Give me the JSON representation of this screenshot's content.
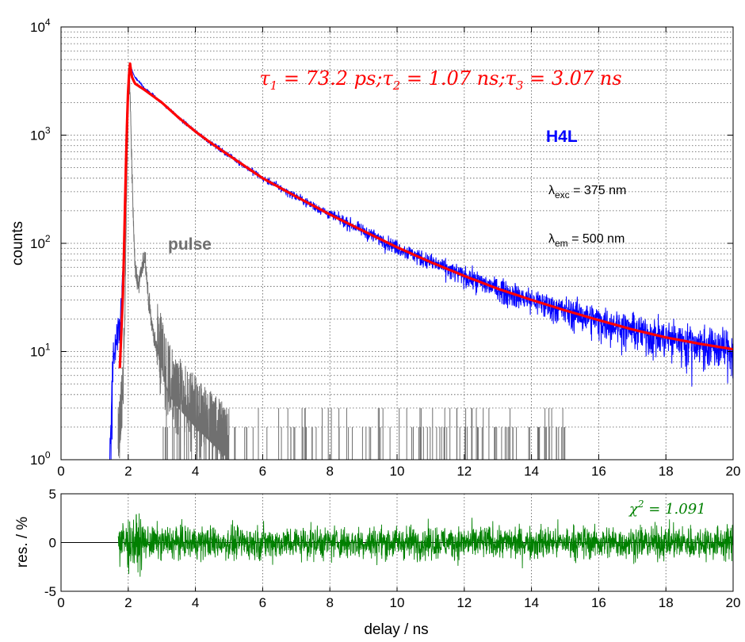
{
  "chart_data": [
    {
      "type": "line",
      "ylabel": "counts",
      "y_scale": "log",
      "xlim": [
        0,
        20
      ],
      "ylim": [
        1,
        10000
      ],
      "x_ticks": [
        "0",
        "2",
        "4",
        "6",
        "8",
        "10",
        "12",
        "14",
        "16",
        "18",
        "20"
      ],
      "y_ticks": [
        {
          "base": "10",
          "exp": "0"
        },
        {
          "base": "10",
          "exp": "1"
        },
        {
          "base": "10",
          "exp": "2"
        },
        {
          "base": "10",
          "exp": "3"
        },
        {
          "base": "10",
          "exp": "4"
        }
      ],
      "grid": true,
      "annotations": {
        "fit": "τ1 = 73.2 ps; τ2 = 1.07 ns; τ3 = 3.07 ns",
        "fit_parts": [
          {
            "sym": "τ",
            "sub": "1",
            "rest": " = 73.2 ps;"
          },
          {
            "sym": "τ",
            "sub": "2",
            "rest": " = 1.07 ns;"
          },
          {
            "sym": "τ",
            "sub": "3",
            "rest": " = 3.07 ns"
          }
        ],
        "sample": "H4L",
        "pulse": "pulse",
        "excitation": {
          "sym": "λ",
          "sub": "exc",
          "rest": " = 375 nm"
        },
        "emission": {
          "sym": "λ",
          "sub": "em",
          "rest": " = 500 nm"
        }
      },
      "series": [
        {
          "role": "measured decay",
          "color": "#0000ff",
          "x": [
            1.45,
            1.55,
            1.65,
            1.75,
            1.85,
            1.95,
            2.05,
            2.2,
            2.5,
            3,
            3.5,
            4,
            4.5,
            5,
            6,
            7,
            8,
            9,
            10,
            11,
            12,
            13,
            14,
            15,
            16,
            17,
            18,
            19,
            20
          ],
          "y": [
            1,
            8,
            12,
            16,
            60,
            1500,
            4500,
            3400,
            2700,
            2000,
            1450,
            1080,
            830,
            650,
            400,
            270,
            185,
            130,
            92,
            67,
            50,
            38,
            30,
            24,
            19.5,
            16,
            13.5,
            11.8,
            10.5
          ]
        },
        {
          "role": "fit",
          "color": "#ff0000",
          "x": [
            1.75,
            1.85,
            1.95,
            2.0,
            2.05,
            2.1,
            2.2,
            2.5,
            3,
            3.5,
            4,
            4.5,
            5,
            6,
            7,
            8,
            9,
            10,
            11,
            12,
            13,
            14,
            15,
            16,
            17,
            18,
            19,
            20
          ],
          "y": [
            7,
            40,
            900,
            2800,
            4700,
            3500,
            3000,
            2600,
            2000,
            1450,
            1080,
            830,
            650,
            400,
            270,
            185,
            130,
            92,
            67,
            50,
            38,
            30,
            24,
            19.5,
            16,
            13.5,
            11.8,
            10.5
          ]
        },
        {
          "role": "instrument pulse",
          "color": "#707070",
          "x": [
            1.7,
            1.8,
            1.9,
            1.95,
            2.0,
            2.05,
            2.1,
            2.2,
            2.3,
            2.4,
            2.5,
            2.6,
            2.7,
            2.8,
            3.0,
            3.2,
            3.5,
            4.0,
            5.0
          ],
          "y": [
            1,
            2,
            20,
            300,
            2000,
            3000,
            600,
            60,
            40,
            55,
            80,
            30,
            18,
            12,
            7,
            4,
            3,
            2,
            1
          ]
        }
      ]
    },
    {
      "type": "line",
      "xlabel": "delay / ns",
      "ylabel": "res. / %",
      "xlim": [
        0,
        20
      ],
      "ylim": [
        -5,
        5
      ],
      "x_ticks": [
        "0",
        "2",
        "4",
        "6",
        "8",
        "10",
        "12",
        "14",
        "16",
        "18",
        "20"
      ],
      "y_ticks": [
        "-5",
        "0",
        "5"
      ],
      "grid": true,
      "annotations": {
        "chi2": "χ2 = 1.091",
        "chi2_parts": {
          "sym": "χ",
          "sup": "2",
          "rest": " = 1.091"
        }
      },
      "series": [
        {
          "role": "residuals",
          "color": "#008000",
          "x_range": [
            1.7,
            20
          ],
          "amplitude": 1.2
        }
      ]
    }
  ]
}
